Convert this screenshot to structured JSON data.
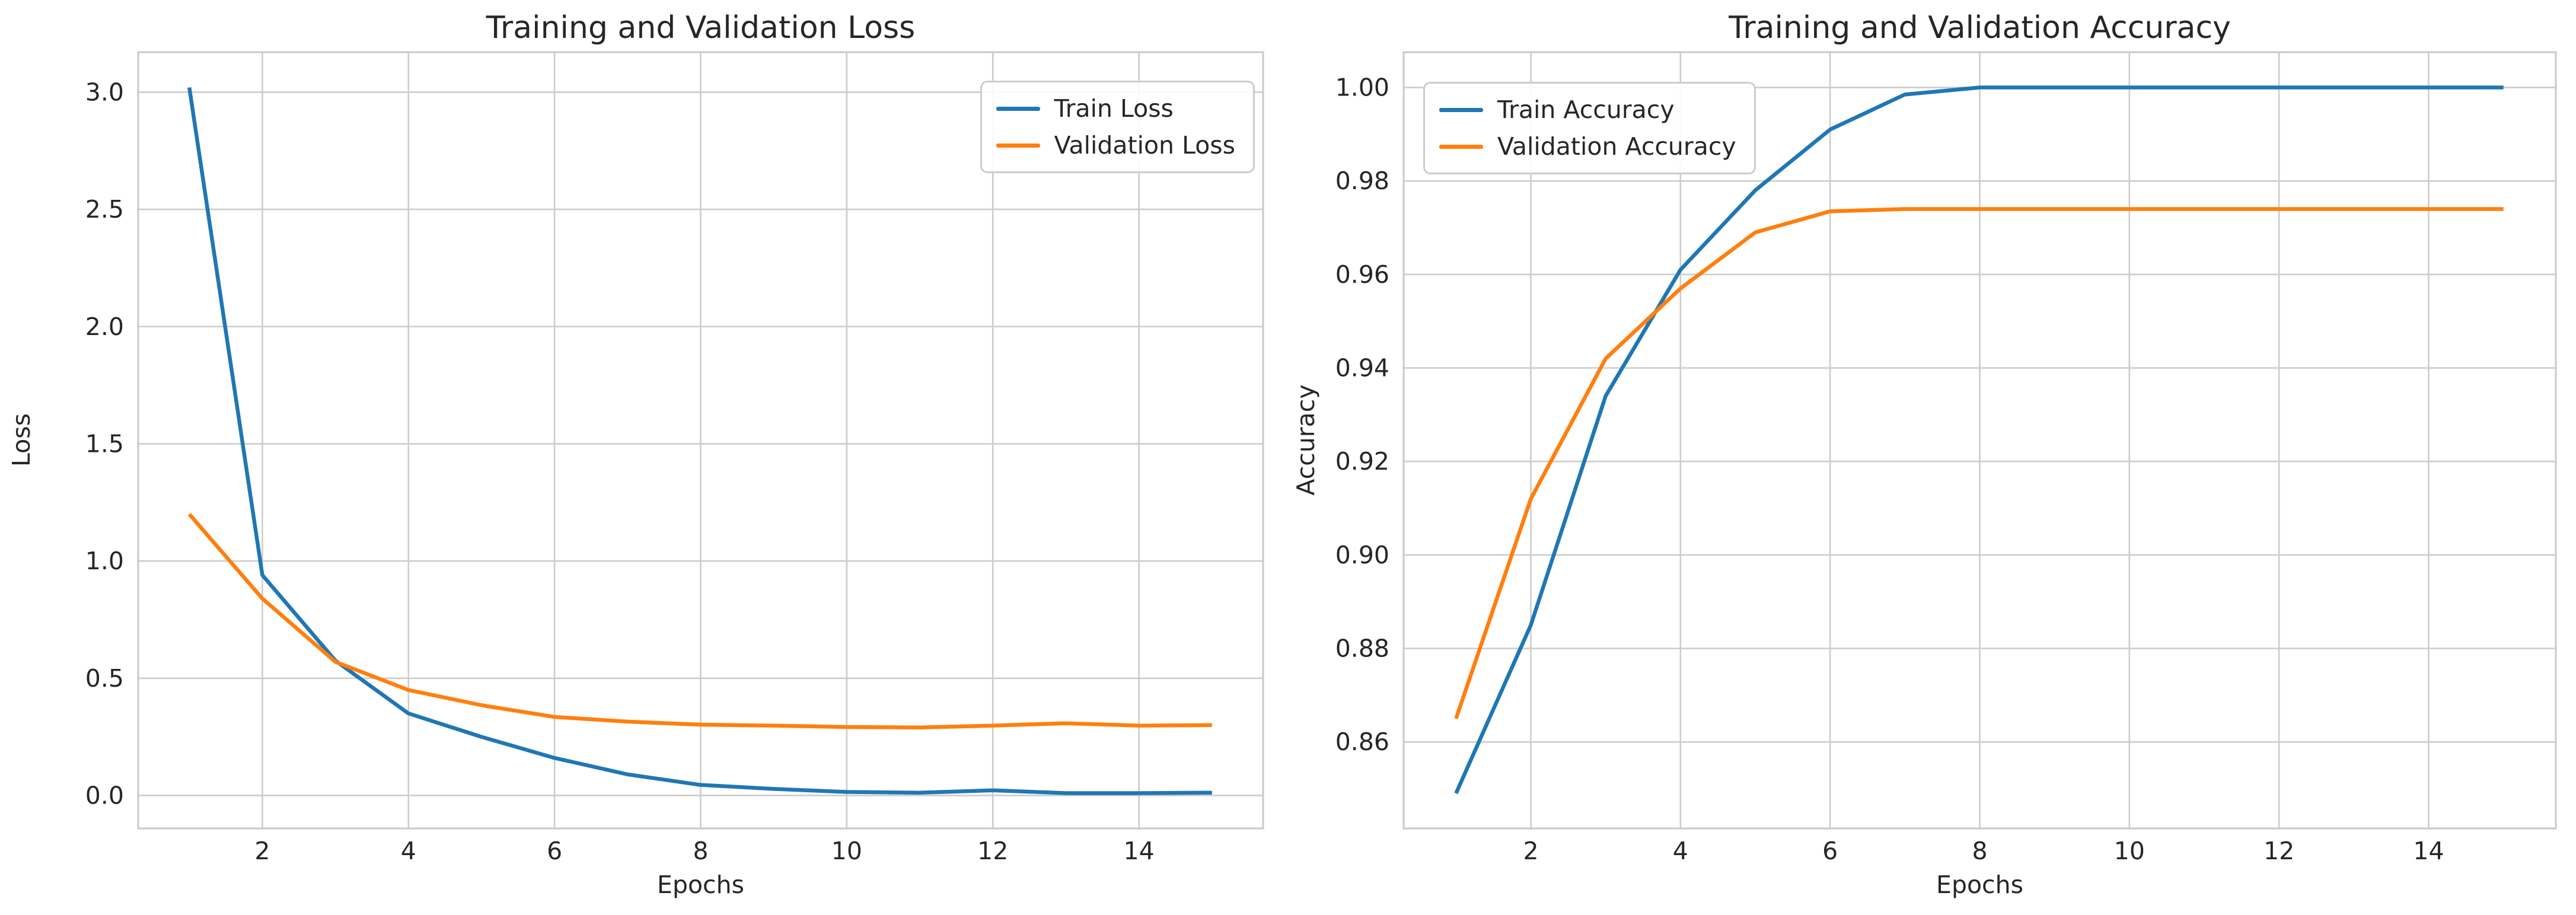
{
  "style": {
    "background": "#ffffff",
    "grid_color": "#cccccc",
    "spine_color": "#c9c9c9",
    "text_color": "#262626",
    "train_color": "#1f77b4",
    "validation_color": "#ff7f0e"
  },
  "chart_data": [
    {
      "type": "line",
      "title": "Training and Validation Loss",
      "xlabel": "Epochs",
      "ylabel": "Loss",
      "x": [
        1,
        2,
        3,
        4,
        5,
        6,
        7,
        8,
        9,
        10,
        11,
        12,
        13,
        14,
        15
      ],
      "series": [
        {
          "name": "Train Loss",
          "color": "#1f77b4",
          "values": [
            3.02,
            0.94,
            0.575,
            0.35,
            0.25,
            0.16,
            0.09,
            0.045,
            0.028,
            0.015,
            0.012,
            0.022,
            0.01,
            0.01,
            0.012
          ]
        },
        {
          "name": "Validation Loss",
          "color": "#ff7f0e",
          "values": [
            1.2,
            0.84,
            0.57,
            0.45,
            0.385,
            0.335,
            0.315,
            0.302,
            0.298,
            0.292,
            0.29,
            0.298,
            0.308,
            0.298,
            0.3
          ]
        }
      ],
      "xlim": [
        0.3,
        15.7
      ],
      "ylim": [
        -0.1405,
        3.1705
      ],
      "xtick_values": [
        2,
        4,
        6,
        8,
        10,
        12,
        14
      ],
      "xtick_labels": [
        "2",
        "4",
        "6",
        "8",
        "10",
        "12",
        "14"
      ],
      "ytick_values": [
        0.0,
        0.5,
        1.0,
        1.5,
        2.0,
        2.5,
        3.0
      ],
      "ytick_labels": [
        "0.0",
        "0.5",
        "1.0",
        "1.5",
        "2.0",
        "2.5",
        "3.0"
      ],
      "grid": true,
      "legend_position": "upper right"
    },
    {
      "type": "line",
      "title": "Training and Validation Accuracy",
      "xlabel": "Epochs",
      "ylabel": "Accuracy",
      "x": [
        1,
        2,
        3,
        4,
        5,
        6,
        7,
        8,
        9,
        10,
        11,
        12,
        13,
        14,
        15
      ],
      "series": [
        {
          "name": "Train Accuracy",
          "color": "#1f77b4",
          "values": [
            0.849,
            0.885,
            0.934,
            0.961,
            0.978,
            0.991,
            0.9985,
            1.0,
            1.0,
            1.0,
            1.0,
            1.0,
            1.0,
            1.0,
            1.0
          ]
        },
        {
          "name": "Validation Accuracy",
          "color": "#ff7f0e",
          "values": [
            0.865,
            0.912,
            0.942,
            0.957,
            0.969,
            0.9735,
            0.974,
            0.974,
            0.974,
            0.974,
            0.974,
            0.974,
            0.974,
            0.974,
            0.974
          ]
        }
      ],
      "xlim": [
        0.3,
        15.7
      ],
      "ylim": [
        0.8415,
        1.00755
      ],
      "xtick_values": [
        2,
        4,
        6,
        8,
        10,
        12,
        14
      ],
      "xtick_labels": [
        "2",
        "4",
        "6",
        "8",
        "10",
        "12",
        "14"
      ],
      "ytick_values": [
        0.86,
        0.88,
        0.9,
        0.92,
        0.94,
        0.96,
        0.98,
        1.0
      ],
      "ytick_labels": [
        "0.86",
        "0.88",
        "0.90",
        "0.92",
        "0.94",
        "0.96",
        "0.98",
        "1.00"
      ],
      "grid": true,
      "legend_position": "upper left"
    }
  ]
}
